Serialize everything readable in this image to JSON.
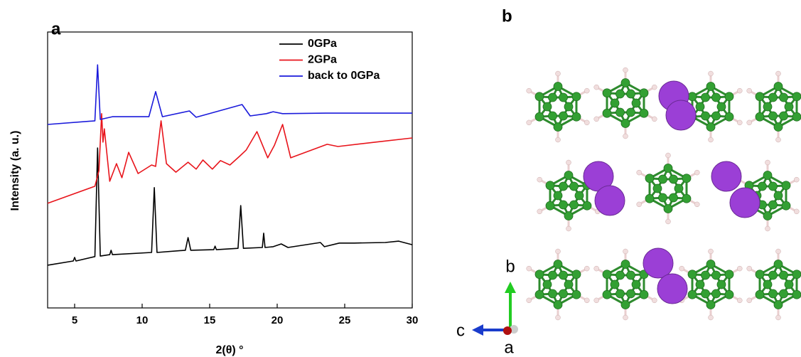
{
  "chart_data": {
    "type": "line",
    "panel_label": "a",
    "x_label": "2(θ) °",
    "y_label": "Intensity (a. u.)",
    "xlim": [
      3,
      30
    ],
    "xticks": [
      5,
      10,
      15,
      20,
      25,
      30
    ],
    "ylim": [
      0,
      100
    ],
    "legend": "upper right",
    "series": [
      {
        "name": "0GPa",
        "color": "#000000",
        "x": [
          3,
          4.9,
          5.0,
          5.1,
          6.5,
          6.7,
          6.9,
          7.6,
          7.7,
          7.8,
          10.7,
          10.9,
          11.1,
          13.2,
          13.4,
          13.6,
          15.3,
          15.4,
          15.5,
          17.1,
          17.3,
          17.5,
          18.9,
          19.0,
          19.1,
          19.7,
          20.3,
          20.8,
          23.2,
          23.5,
          24.6,
          25.7,
          28.0,
          29.0,
          30
        ],
        "values": [
          15.5,
          17.0,
          18.3,
          17.0,
          18.6,
          58.0,
          18.8,
          19.3,
          20.9,
          19.3,
          20.1,
          43.6,
          20.1,
          20.9,
          25.5,
          20.9,
          21.1,
          22.4,
          21.1,
          21.6,
          37.1,
          21.6,
          21.9,
          27.1,
          21.9,
          22.2,
          23.2,
          21.9,
          23.7,
          22.2,
          23.5,
          23.5,
          23.7,
          24.2,
          22.9
        ]
      },
      {
        "name": "2GPa",
        "color": "#e8141b",
        "x": [
          3,
          6.5,
          6.8,
          7.0,
          7.1,
          7.2,
          7.6,
          8.1,
          8.5,
          9.0,
          9.7,
          10.7,
          11.0,
          11.4,
          11.8,
          12.5,
          13.4,
          14.0,
          14.5,
          15.2,
          15.8,
          16.5,
          17.2,
          17.7,
          18.5,
          19.3,
          19.8,
          20.4,
          21.0,
          23.7,
          24.5,
          27.3,
          30
        ],
        "values": [
          37.9,
          44.1,
          49.7,
          70.4,
          60.1,
          64.9,
          45.9,
          52.3,
          47.2,
          56.4,
          48.7,
          51.8,
          51.3,
          67.8,
          52.3,
          49.2,
          52.8,
          50.3,
          53.6,
          50.3,
          53.4,
          51.8,
          54.9,
          57.2,
          63.9,
          54.4,
          59.0,
          66.5,
          54.4,
          59.3,
          58.5,
          60.1,
          61.6
        ]
      },
      {
        "name": "back to 0GPa",
        "color": "#1a1adb",
        "x": [
          3,
          6.5,
          6.7,
          6.9,
          7.8,
          10.5,
          11.0,
          11.5,
          13.5,
          14.0,
          17.4,
          18.0,
          19.2,
          19.7,
          20.4,
          23.6,
          30
        ],
        "values": [
          66.5,
          67.8,
          88.1,
          68.3,
          69.3,
          69.3,
          78.4,
          69.3,
          71.4,
          69.1,
          73.7,
          69.6,
          70.4,
          71.1,
          70.4,
          70.6,
          70.6
        ]
      }
    ]
  },
  "structure": {
    "panel_label": "b",
    "axis_labels": [
      "b",
      "c",
      "a"
    ]
  }
}
